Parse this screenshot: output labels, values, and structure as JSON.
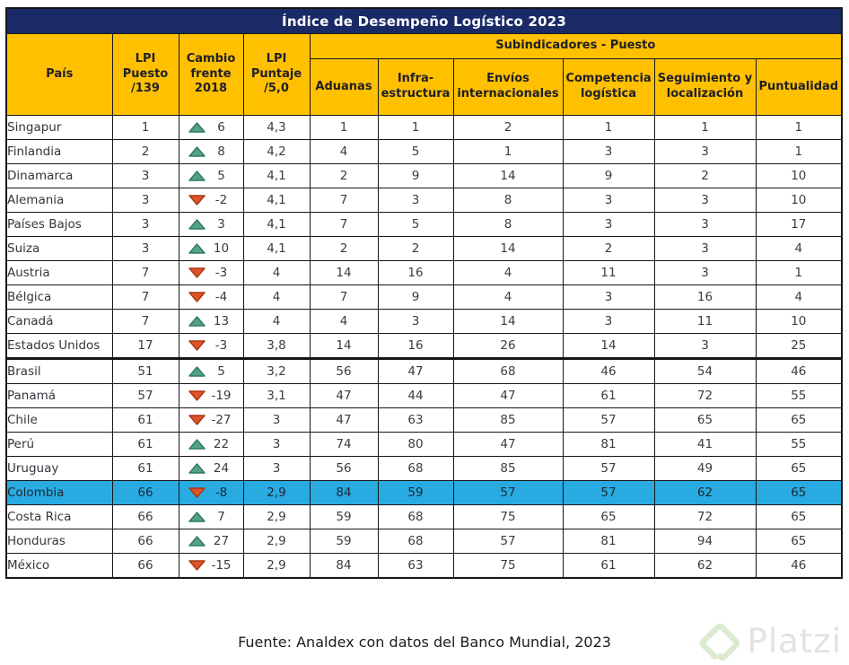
{
  "title": "Índice de Desempeño Logístico 2023",
  "headers": {
    "pais": "País",
    "lpi_puesto": "LPI\nPuesto\n/139",
    "cambio": "Cambio\nfrente\n2018",
    "lpi_puntaje": "LPI\nPuntaje\n/5,0",
    "subindicadores": "Subindicadores - Puesto",
    "sub": [
      "Aduanas",
      "Infra-\nestructura",
      "Envíos\ninternacionales",
      "Competencia\nlogística",
      "Seguimiento y\nlocalización",
      "Puntualidad"
    ]
  },
  "rows": [
    {
      "pais": "Singapur",
      "puesto": "1",
      "cambio_dir": "up",
      "cambio": "6",
      "puntaje": "4,3",
      "aduanas": "1",
      "infra": "1",
      "envios": "2",
      "competencia": "1",
      "seguimiento": "1",
      "puntualidad": "1",
      "highlight": false,
      "group_start": false
    },
    {
      "pais": "Finlandia",
      "puesto": "2",
      "cambio_dir": "up",
      "cambio": "8",
      "puntaje": "4,2",
      "aduanas": "4",
      "infra": "5",
      "envios": "1",
      "competencia": "3",
      "seguimiento": "3",
      "puntualidad": "1",
      "highlight": false,
      "group_start": false
    },
    {
      "pais": "Dinamarca",
      "puesto": "3",
      "cambio_dir": "up",
      "cambio": "5",
      "puntaje": "4,1",
      "aduanas": "2",
      "infra": "9",
      "envios": "14",
      "competencia": "9",
      "seguimiento": "2",
      "puntualidad": "10",
      "highlight": false,
      "group_start": false
    },
    {
      "pais": "Alemania",
      "puesto": "3",
      "cambio_dir": "down",
      "cambio": "-2",
      "puntaje": "4,1",
      "aduanas": "7",
      "infra": "3",
      "envios": "8",
      "competencia": "3",
      "seguimiento": "3",
      "puntualidad": "10",
      "highlight": false,
      "group_start": false
    },
    {
      "pais": "Países Bajos",
      "puesto": "3",
      "cambio_dir": "up",
      "cambio": "3",
      "puntaje": "4,1",
      "aduanas": "7",
      "infra": "5",
      "envios": "8",
      "competencia": "3",
      "seguimiento": "3",
      "puntualidad": "17",
      "highlight": false,
      "group_start": false
    },
    {
      "pais": "Suiza",
      "puesto": "3",
      "cambio_dir": "up",
      "cambio": "10",
      "puntaje": "4,1",
      "aduanas": "2",
      "infra": "2",
      "envios": "14",
      "competencia": "2",
      "seguimiento": "3",
      "puntualidad": "4",
      "highlight": false,
      "group_start": false
    },
    {
      "pais": "Austria",
      "puesto": "7",
      "cambio_dir": "down",
      "cambio": "-3",
      "puntaje": "4",
      "aduanas": "14",
      "infra": "16",
      "envios": "4",
      "competencia": "11",
      "seguimiento": "3",
      "puntualidad": "1",
      "highlight": false,
      "group_start": false
    },
    {
      "pais": "Bélgica",
      "puesto": "7",
      "cambio_dir": "down",
      "cambio": "-4",
      "puntaje": "4",
      "aduanas": "7",
      "infra": "9",
      "envios": "4",
      "competencia": "3",
      "seguimiento": "16",
      "puntualidad": "4",
      "highlight": false,
      "group_start": false
    },
    {
      "pais": "Canadá",
      "puesto": "7",
      "cambio_dir": "up",
      "cambio": "13",
      "puntaje": "4",
      "aduanas": "4",
      "infra": "3",
      "envios": "14",
      "competencia": "3",
      "seguimiento": "11",
      "puntualidad": "10",
      "highlight": false,
      "group_start": false
    },
    {
      "pais": "Estados Unidos",
      "puesto": "17",
      "cambio_dir": "down",
      "cambio": "-3",
      "puntaje": "3,8",
      "aduanas": "14",
      "infra": "16",
      "envios": "26",
      "competencia": "14",
      "seguimiento": "3",
      "puntualidad": "25",
      "highlight": false,
      "group_start": false
    },
    {
      "pais": "Brasil",
      "puesto": "51",
      "cambio_dir": "up",
      "cambio": "5",
      "puntaje": "3,2",
      "aduanas": "56",
      "infra": "47",
      "envios": "68",
      "competencia": "46",
      "seguimiento": "54",
      "puntualidad": "46",
      "highlight": false,
      "group_start": true
    },
    {
      "pais": "Panamá",
      "puesto": "57",
      "cambio_dir": "down",
      "cambio": "-19",
      "puntaje": "3,1",
      "aduanas": "47",
      "infra": "44",
      "envios": "47",
      "competencia": "61",
      "seguimiento": "72",
      "puntualidad": "55",
      "highlight": false,
      "group_start": false
    },
    {
      "pais": "Chile",
      "puesto": "61",
      "cambio_dir": "down",
      "cambio": "-27",
      "puntaje": "3",
      "aduanas": "47",
      "infra": "63",
      "envios": "85",
      "competencia": "57",
      "seguimiento": "65",
      "puntualidad": "65",
      "highlight": false,
      "group_start": false
    },
    {
      "pais": "Perú",
      "puesto": "61",
      "cambio_dir": "up",
      "cambio": "22",
      "puntaje": "3",
      "aduanas": "74",
      "infra": "80",
      "envios": "47",
      "competencia": "81",
      "seguimiento": "41",
      "puntualidad": "55",
      "highlight": false,
      "group_start": false
    },
    {
      "pais": "Uruguay",
      "puesto": "61",
      "cambio_dir": "up",
      "cambio": "24",
      "puntaje": "3",
      "aduanas": "56",
      "infra": "68",
      "envios": "85",
      "competencia": "57",
      "seguimiento": "49",
      "puntualidad": "65",
      "highlight": false,
      "group_start": false
    },
    {
      "pais": "Colombia",
      "puesto": "66",
      "cambio_dir": "down",
      "cambio": "-8",
      "puntaje": "2,9",
      "aduanas": "84",
      "infra": "59",
      "envios": "57",
      "competencia": "57",
      "seguimiento": "62",
      "puntualidad": "65",
      "highlight": true,
      "group_start": false
    },
    {
      "pais": "Costa Rica",
      "puesto": "66",
      "cambio_dir": "up",
      "cambio": "7",
      "puntaje": "2,9",
      "aduanas": "59",
      "infra": "68",
      "envios": "75",
      "competencia": "65",
      "seguimiento": "72",
      "puntualidad": "65",
      "highlight": false,
      "group_start": false
    },
    {
      "pais": "Honduras",
      "puesto": "66",
      "cambio_dir": "up",
      "cambio": "27",
      "puntaje": "2,9",
      "aduanas": "59",
      "infra": "68",
      "envios": "57",
      "competencia": "81",
      "seguimiento": "94",
      "puntualidad": "65",
      "highlight": false,
      "group_start": false
    },
    {
      "pais": "México",
      "puesto": "66",
      "cambio_dir": "down",
      "cambio": "-15",
      "puntaje": "2,9",
      "aduanas": "84",
      "infra": "63",
      "envios": "75",
      "competencia": "61",
      "seguimiento": "62",
      "puntualidad": "46",
      "highlight": false,
      "group_start": false
    }
  ],
  "footer": {
    "source": "Fuente: Analdex con datos del Banco Mundial, 2023",
    "watermark": "Platzi"
  },
  "colors": {
    "title_bg": "#192a67",
    "header_bg": "#ffc000",
    "highlight_bg": "#29abe2",
    "up_fill": "#54a185",
    "up_stroke": "#2f7a60",
    "down_fill": "#de5429",
    "down_stroke": "#a83712",
    "watermark_logo": "#dcead2"
  }
}
